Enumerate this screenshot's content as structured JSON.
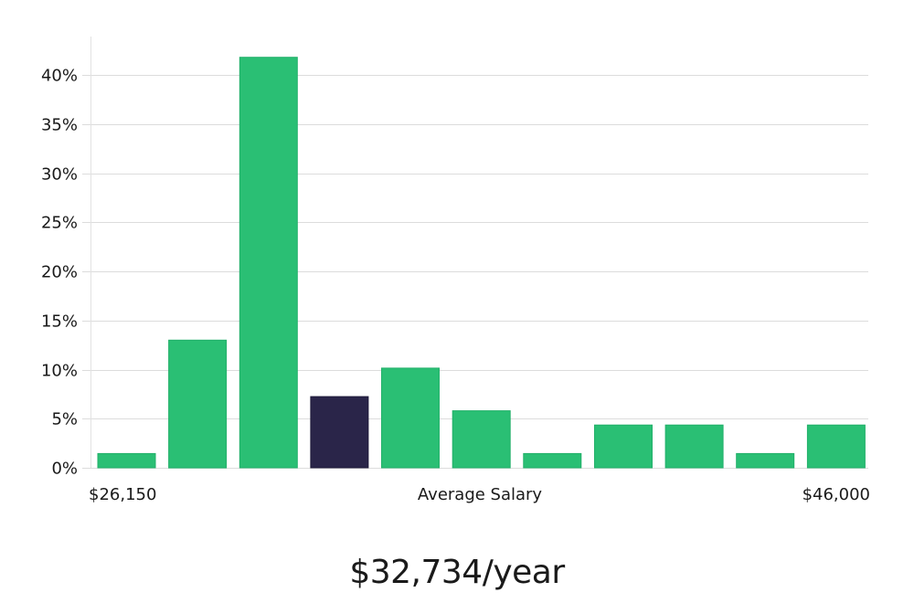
{
  "chart_data": {
    "type": "bar",
    "categories": [
      "1",
      "2",
      "3",
      "4",
      "5",
      "6",
      "7",
      "8",
      "9",
      "10",
      "11"
    ],
    "values": [
      1.45,
      13.0,
      41.8,
      7.25,
      10.15,
      5.8,
      1.45,
      4.35,
      4.35,
      1.45,
      4.35
    ],
    "highlight_index": 3,
    "ylim": [
      0,
      40
    ],
    "yticks": [
      "0%",
      "5%",
      "10%",
      "15%",
      "20%",
      "25%",
      "30%",
      "35%",
      "40%"
    ],
    "xlabel": "Average Salary",
    "x_min_label": "$26,150",
    "x_max_label": "$46,000",
    "grid": true,
    "colors": {
      "bar": "#2abf74",
      "bar_border": "#22b06a",
      "highlight": "#2a2549",
      "grid": "#dcdcdc",
      "axis": "#e2e2e2"
    }
  },
  "salary_text": "$32,734/year"
}
